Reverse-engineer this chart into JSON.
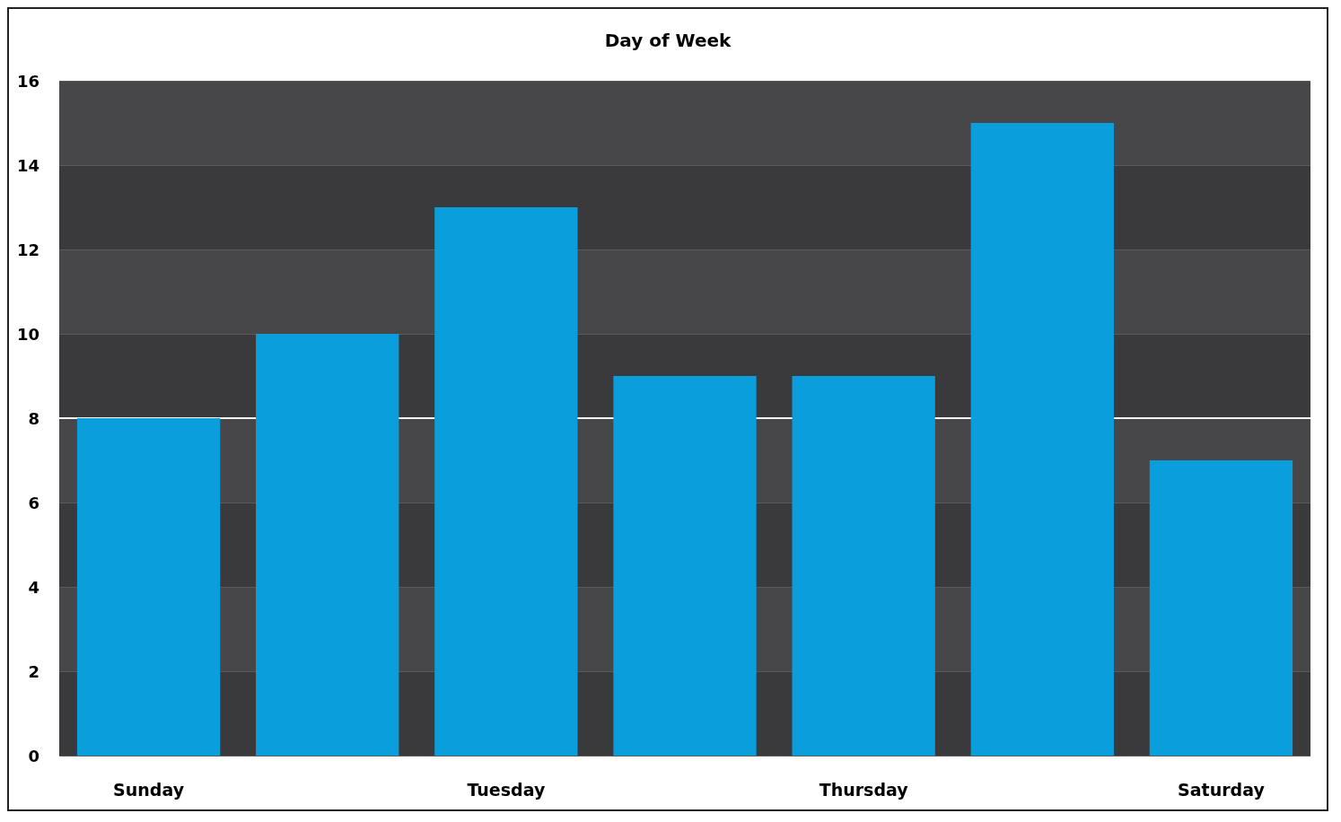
{
  "chart_data": {
    "type": "bar",
    "title": "Day of Week",
    "categories": [
      "Sunday",
      null,
      "Tuesday",
      null,
      "Thursday",
      null,
      "Saturday"
    ],
    "values": [
      8,
      10,
      13,
      9,
      9,
      15,
      7
    ],
    "color": "#0a9fdc",
    "ylim": [
      0,
      16
    ],
    "yticks": [
      0,
      2,
      4,
      6,
      8,
      10,
      12,
      14,
      16
    ],
    "grid": true,
    "ref_lines": [
      {
        "axis": "y",
        "value": 8,
        "color": "#ffffff"
      }
    ]
  }
}
